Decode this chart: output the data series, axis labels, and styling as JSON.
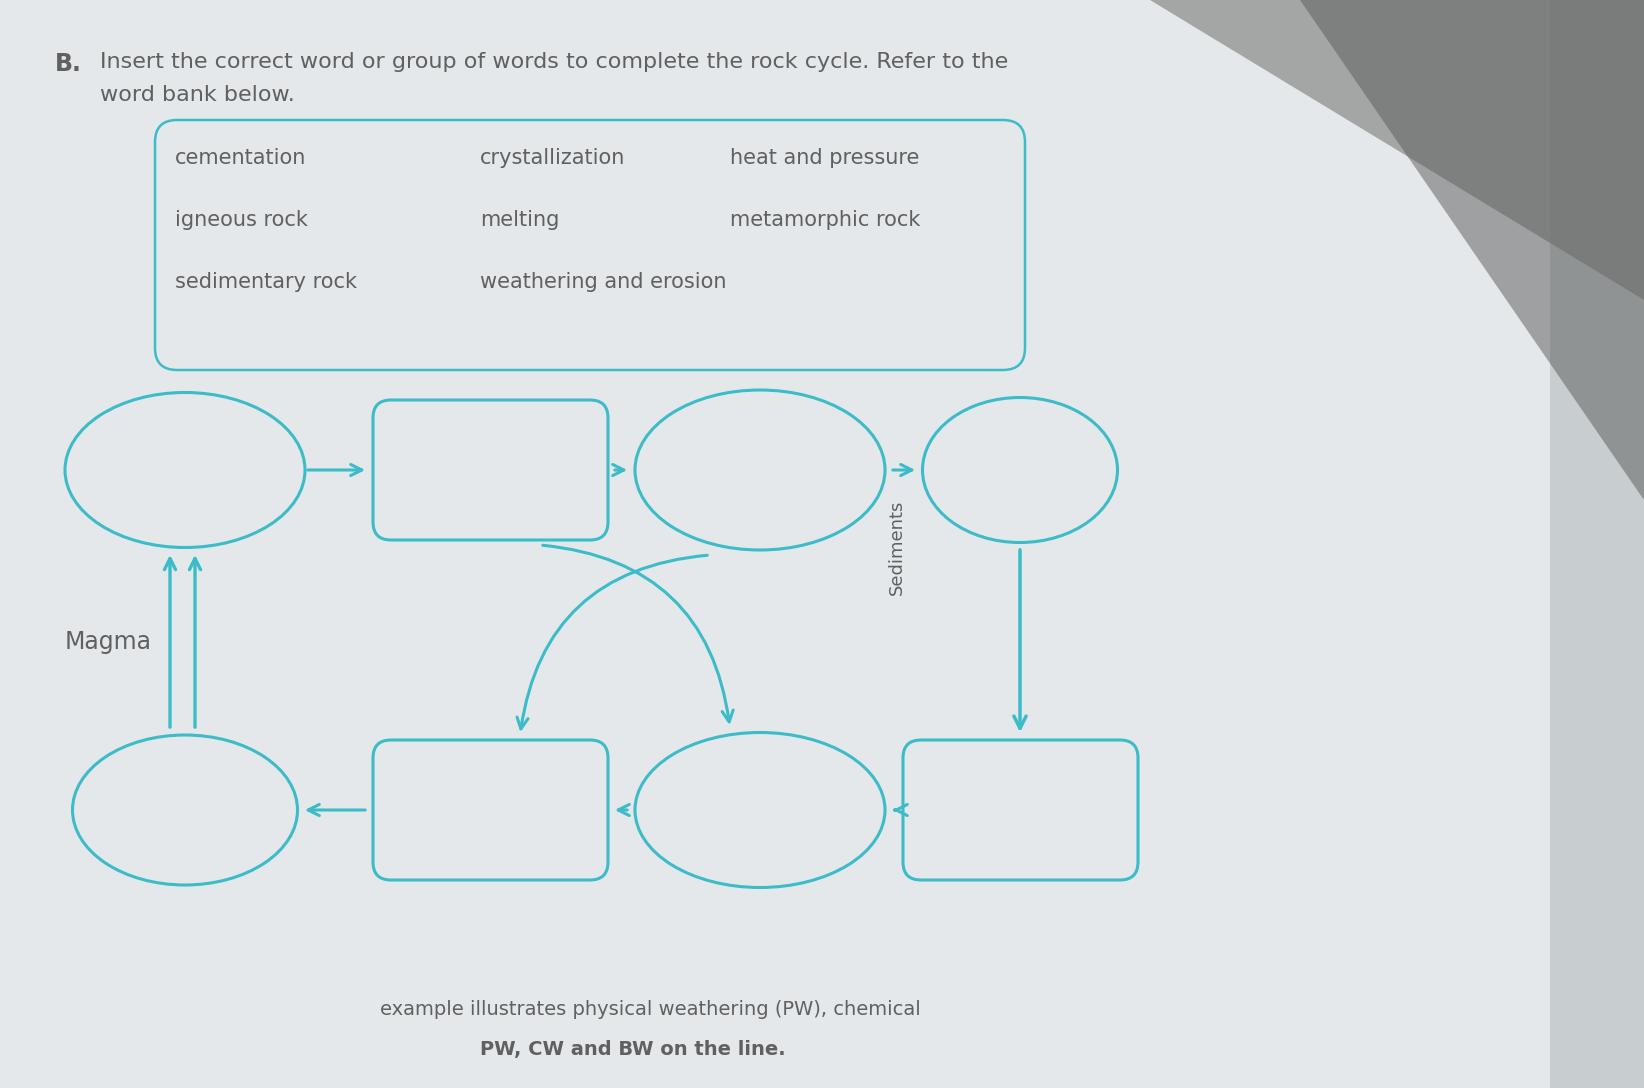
{
  "bg_color": "#e8eaec",
  "page_color": "#e8ecee",
  "teal": "#3bbcc8",
  "dark_gray": "#606060",
  "title_b": "B.",
  "title_line1": "Insert the correct word or group of words to complete the rock cycle. Refer to the",
  "title_line2": "word bank below.",
  "word_bank_col1": [
    "cementation",
    "igneous rock",
    "sedimentary rock"
  ],
  "word_bank_col2": [
    "crystallization",
    "melting",
    "weathering and erosion"
  ],
  "word_bank_col3": [
    "heat and pressure",
    "metamorphic rock"
  ],
  "sediments_label": "Sediments",
  "magma_label": "Magma",
  "bottom_text": "example illustrates physical weathering (PW), chemical",
  "bottom_text2": "PW, CW and BW on the line.",
  "figsize": [
    16.44,
    10.88
  ]
}
